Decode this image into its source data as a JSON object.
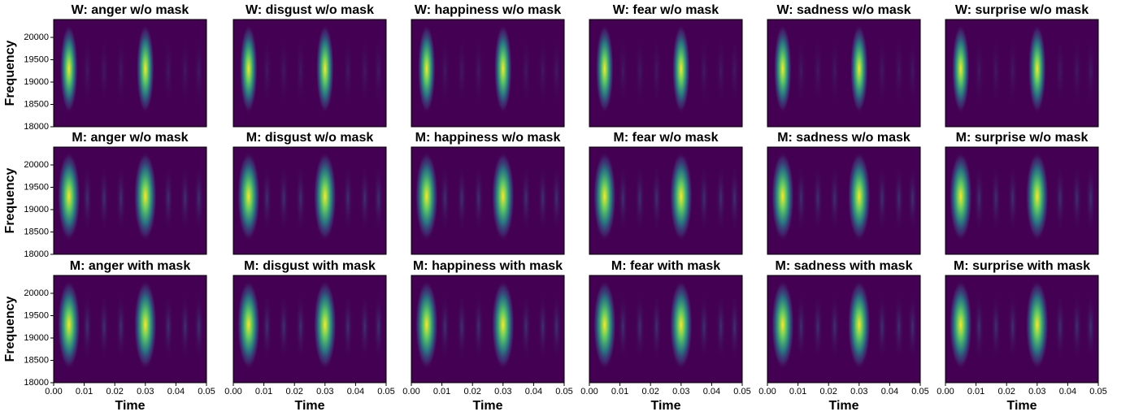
{
  "chart_data": [
    {
      "type": "heatmap",
      "title": "W: anger w/o mask",
      "xlim": [
        0,
        0.05
      ],
      "ylim": [
        18000,
        20400
      ],
      "y_label": "Frequency",
      "yticks": [
        18000,
        18500,
        19000,
        19500,
        20000
      ]
    },
    {
      "type": "heatmap",
      "title": "W: disgust w/o mask",
      "xlim": [
        0,
        0.05
      ],
      "ylim": [
        18000,
        20400
      ]
    },
    {
      "type": "heatmap",
      "title": "W: happiness w/o mask",
      "xlim": [
        0,
        0.05
      ],
      "ylim": [
        18000,
        20400
      ]
    },
    {
      "type": "heatmap",
      "title": "W: fear w/o mask",
      "xlim": [
        0,
        0.05
      ],
      "ylim": [
        18000,
        20400
      ]
    },
    {
      "type": "heatmap",
      "title": "W: sadness w/o mask",
      "xlim": [
        0,
        0.05
      ],
      "ylim": [
        18000,
        20400
      ]
    },
    {
      "type": "heatmap",
      "title": "W: surprise w/o mask",
      "xlim": [
        0,
        0.05
      ],
      "ylim": [
        18000,
        20400
      ]
    },
    {
      "type": "heatmap",
      "title": "M: anger w/o mask",
      "xlim": [
        0,
        0.05
      ],
      "ylim": [
        18000,
        20400
      ],
      "y_label": "Frequency",
      "yticks": [
        18000,
        18500,
        19000,
        19500,
        20000
      ]
    },
    {
      "type": "heatmap",
      "title": "M: disgust w/o mask",
      "xlim": [
        0,
        0.05
      ],
      "ylim": [
        18000,
        20400
      ]
    },
    {
      "type": "heatmap",
      "title": "M: happiness w/o mask",
      "xlim": [
        0,
        0.05
      ],
      "ylim": [
        18000,
        20400
      ]
    },
    {
      "type": "heatmap",
      "title": "M: fear w/o mask",
      "xlim": [
        0,
        0.05
      ],
      "ylim": [
        18000,
        20400
      ]
    },
    {
      "type": "heatmap",
      "title": "M: sadness w/o mask",
      "xlim": [
        0,
        0.05
      ],
      "ylim": [
        18000,
        20400
      ]
    },
    {
      "type": "heatmap",
      "title": "M: surprise w/o mask",
      "xlim": [
        0,
        0.05
      ],
      "ylim": [
        18000,
        20400
      ]
    },
    {
      "type": "heatmap",
      "title": "M: anger with mask",
      "xlim": [
        0,
        0.05
      ],
      "ylim": [
        18000,
        20400
      ],
      "y_label": "Frequency",
      "yticks": [
        18000,
        18500,
        19000,
        19500,
        20000
      ],
      "x_label": "Time",
      "xticks": [
        {
          "value": 0,
          "label": "0.00"
        },
        0.01,
        0.02,
        0.03,
        0.04,
        0.05
      ]
    },
    {
      "type": "heatmap",
      "title": "M: disgust with mask",
      "xlim": [
        0,
        0.05
      ],
      "ylim": [
        18000,
        20400
      ],
      "x_label": "Time",
      "xticks": [
        {
          "value": 0,
          "label": "0.00"
        },
        0.01,
        0.02,
        0.03,
        0.04,
        0.05
      ]
    },
    {
      "type": "heatmap",
      "title": "M: happiness with mask",
      "xlim": [
        0,
        0.05
      ],
      "ylim": [
        18000,
        20400
      ],
      "x_label": "Time",
      "xticks": [
        {
          "value": 0,
          "label": "0.00"
        },
        0.01,
        0.02,
        0.03,
        0.04,
        0.05
      ]
    },
    {
      "type": "heatmap",
      "title": "M: fear with mask",
      "xlim": [
        0,
        0.05
      ],
      "ylim": [
        18000,
        20400
      ],
      "x_label": "Time",
      "xticks": [
        {
          "value": 0,
          "label": "0.00"
        },
        0.01,
        0.02,
        0.03,
        0.04,
        0.05
      ]
    },
    {
      "type": "heatmap",
      "title": "M: sadness with mask",
      "xlim": [
        0,
        0.05
      ],
      "ylim": [
        18000,
        20400
      ],
      "x_label": "Time",
      "xticks": [
        {
          "value": 0,
          "label": "0.00"
        },
        0.01,
        0.02,
        0.03,
        0.04,
        0.05
      ]
    },
    {
      "type": "heatmap",
      "title": "M: surprise with mask",
      "xlim": [
        0,
        0.05
      ],
      "ylim": [
        18000,
        20400
      ],
      "x_label": "Time",
      "xticks": [
        {
          "value": 0,
          "label": "0.00"
        },
        0.01,
        0.02,
        0.03,
        0.04,
        0.05
      ]
    }
  ]
}
